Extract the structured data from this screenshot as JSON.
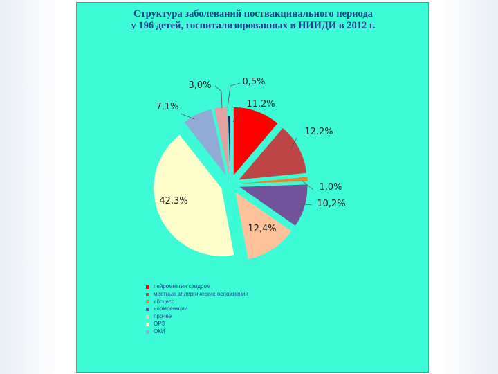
{
  "slide": {
    "background": "#ffffff",
    "panel_color": "#3dfbd6"
  },
  "chart_data": {
    "type": "pie",
    "title_lines": [
      "Структура заболеваний поствакцинального периода",
      "у 196 детей, госпитализированных в НИИДИ в 2012 г."
    ],
    "slices": [
      {
        "label": "пейромнагия саидром",
        "value": 11.2,
        "display": "11,2%",
        "color": "#ff0000",
        "exploded": true
      },
      {
        "label": "местные аллергические осложнения",
        "value": 12.2,
        "display": "12,2%",
        "color": "#bd4545",
        "exploded": true
      },
      {
        "label": "абсцесс",
        "value": 1.0,
        "display": "1,0%",
        "color": "#e8862e",
        "exploded": true
      },
      {
        "label": "нормреакции",
        "value": 10.2,
        "display": "10,2%",
        "color": "#72529a",
        "exploded": true
      },
      {
        "label": "прочее",
        "value": 12.4,
        "display": "12,4%",
        "color": "#fdc29a",
        "exploded": true
      },
      {
        "label": "ОРЗ",
        "value": 42.3,
        "display": "42,3%",
        "color": "#ffffcc",
        "exploded": true
      },
      {
        "label": "ОКИ",
        "value": 7.1,
        "display": "7,1%",
        "color": "#91abd6",
        "exploded": true
      },
      {
        "label": "",
        "value": 3.0,
        "display": "3,0%",
        "color": "#e1a1a1",
        "exploded": true
      },
      {
        "label": "",
        "value": 0.5,
        "display": "0,5%",
        "color": "#1f2a64",
        "exploded": false
      }
    ],
    "legend": [
      {
        "label": "пейромнагия саидром",
        "color": "#ff0000"
      },
      {
        "label": "местные аллергические осложнения",
        "color": "#bd4545"
      },
      {
        "label": "абсцесс",
        "color": "#e8862e"
      },
      {
        "label": "нормреакции",
        "color": "#3f5fa0"
      },
      {
        "label": "прочее",
        "color": "#fdc29a"
      },
      {
        "label": "ОРЗ",
        "color": "#ffffcc"
      },
      {
        "label": "ОКИ",
        "color": "#91abd6"
      }
    ],
    "legend_position": "bottom"
  }
}
